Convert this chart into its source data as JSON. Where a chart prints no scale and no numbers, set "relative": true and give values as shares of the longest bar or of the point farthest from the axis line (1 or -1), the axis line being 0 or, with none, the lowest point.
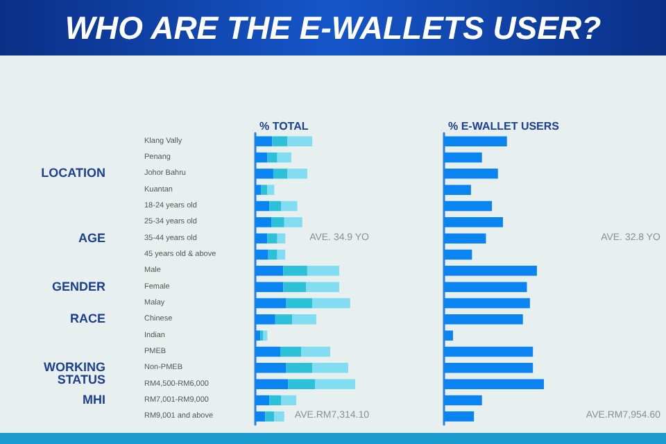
{
  "chart_data": [
    {
      "type": "bar",
      "title": "WHO ARE THE E-WALLETS USER?",
      "subtitle": "% TOTAL",
      "orientation": "horizontal",
      "stacked": true,
      "relative": true,
      "tick_labels": "y",
      "categories": [
        "Klang Vally",
        "Penang",
        "Johor Bahru",
        "Kuantan",
        "18-24 years old",
        "25-34 years old",
        "35-44 years old",
        "45 years old & above",
        "Male",
        "Female",
        "Malay",
        "Chinese",
        "Indian",
        "PMEB",
        "Non-PMEB",
        "RM4,500-RM6,000",
        "RM7,001-RM9,000",
        "RM9,001 and above"
      ],
      "series": [
        {
          "color": "#0a84f0",
          "values": [
            0.17,
            0.12,
            0.18,
            0.06,
            0.14,
            0.16,
            0.12,
            0.13,
            0.28,
            0.28,
            0.31,
            0.2,
            0.05,
            0.25,
            0.31,
            0.33,
            0.14,
            0.1
          ]
        },
        {
          "color": "#2cc1d9",
          "values": [
            0.15,
            0.1,
            0.14,
            0.06,
            0.12,
            0.13,
            0.1,
            0.09,
            0.24,
            0.23,
            0.26,
            0.17,
            0.03,
            0.21,
            0.26,
            0.27,
            0.12,
            0.09
          ]
        },
        {
          "color": "#82dcf2",
          "values": [
            0.25,
            0.14,
            0.2,
            0.07,
            0.16,
            0.18,
            0.08,
            0.08,
            0.32,
            0.33,
            0.38,
            0.24,
            0.04,
            0.29,
            0.36,
            0.4,
            0.15,
            0.1
          ]
        }
      ],
      "annotations": [
        "LOCATION",
        "AGE",
        "GENDER",
        "RACE",
        "WORKING STATUS",
        "MHI",
        "AVE. 34.9 YO",
        "AVE.RM7,314.10"
      ]
    },
    {
      "type": "bar",
      "title": "% E-WALLET USERS",
      "orientation": "horizontal",
      "relative": true,
      "tick_labels": false,
      "categories": [
        null,
        null,
        null,
        null,
        null,
        null,
        null,
        null,
        null,
        null,
        null,
        null,
        null,
        null,
        null,
        null,
        null,
        null
      ],
      "series": [
        {
          "color": "#0a84f0",
          "values": [
            0.63,
            0.38,
            0.54,
            0.27,
            0.48,
            0.59,
            0.42,
            0.28,
            0.93,
            0.83,
            0.86,
            0.79,
            0.09,
            0.89,
            0.89,
            1,
            0.38,
            0.3
          ]
        }
      ],
      "annotations": [
        "AVE. 32.8 YO",
        "AVE.RM7,954.60"
      ]
    }
  ]
}
